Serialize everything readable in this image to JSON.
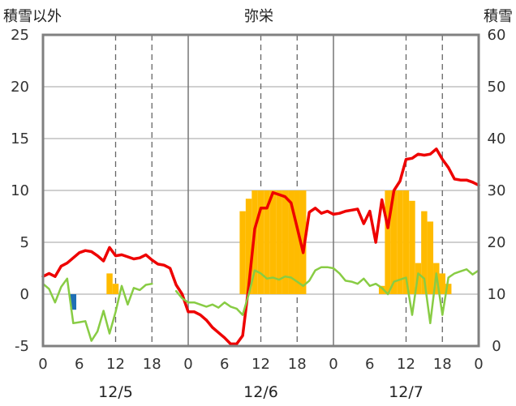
{
  "chart_data": {
    "type": "bar+line",
    "title": "弥栄",
    "left_axis_label": "積雪以外",
    "right_axis_label": "積雪",
    "left_axis": {
      "min": -5,
      "max": 25,
      "ticks": [
        -5,
        0,
        5,
        10,
        15,
        20,
        25
      ]
    },
    "right_axis": {
      "min": 0,
      "max": 60,
      "ticks": [
        0,
        10,
        20,
        30,
        40,
        50,
        60
      ]
    },
    "x_axis": {
      "min": 0,
      "max": 72,
      "tick_hours": [
        0,
        6,
        12,
        18,
        24,
        30,
        36,
        42,
        48,
        54,
        60,
        66,
        72
      ],
      "tick_labels": [
        "0",
        "6",
        "12",
        "18",
        "0",
        "6",
        "12",
        "18",
        "0",
        "6",
        "12",
        "18",
        "0"
      ],
      "date_labels": [
        {
          "hour": 12,
          "label": "12/5"
        },
        {
          "hour": 36,
          "label": "12/6"
        },
        {
          "hour": 60,
          "label": "12/7"
        }
      ],
      "day_separators": [
        24,
        48
      ],
      "noon_lines": [
        12,
        36,
        60
      ]
    },
    "colors": {
      "temperature": "#ee0000",
      "dewpoint": "#88cc44",
      "snowfall": "#ffbb00",
      "precipitation": "#1f6fb5",
      "snow_depth": "#7030a0"
    },
    "series": [
      {
        "key": "temperature",
        "axis": "left",
        "x": [
          0,
          1,
          2,
          3,
          4,
          5,
          6,
          7,
          8,
          9,
          10,
          11,
          12,
          13,
          14,
          15,
          16,
          17,
          18,
          19,
          20,
          21,
          22,
          23,
          24,
          25,
          26,
          27,
          28,
          29,
          30,
          31,
          32,
          33,
          34,
          35,
          36,
          37,
          38,
          39,
          40,
          41,
          42,
          43,
          44,
          45,
          46,
          47,
          48,
          49,
          50,
          51,
          52,
          53,
          54,
          55,
          56,
          57,
          58,
          59,
          60,
          61,
          62,
          63,
          64,
          65,
          66,
          67,
          68,
          69,
          70,
          71
        ],
        "values": [
          1.7,
          2.0,
          1.7,
          2.7,
          3.0,
          3.5,
          4.0,
          4.2,
          4.1,
          3.7,
          3.2,
          4.5,
          3.7,
          3.8,
          3.6,
          3.4,
          3.5,
          3.8,
          3.3,
          2.9,
          2.8,
          2.5,
          0.9,
          0.0,
          -1.7,
          -1.7,
          -2.0,
          -2.5,
          -3.2,
          -3.7,
          -4.2,
          -4.8,
          -4.8,
          -4.0,
          0.8,
          6.3,
          8.3,
          8.3,
          9.8,
          9.6,
          9.4,
          8.8,
          6.4,
          4.0,
          7.9,
          8.3,
          7.8,
          8.0,
          7.7,
          7.8,
          8.0,
          8.1,
          8.2,
          6.8,
          8.0,
          5.0,
          9.1,
          6.4,
          10.0,
          10.9,
          13.0,
          13.1,
          13.5,
          13.4,
          13.5,
          14.0,
          13.0,
          12.2,
          11.1,
          11.0,
          11.0,
          10.8
        ]
      },
      {
        "key": "temperature_tail",
        "axis": "left",
        "x": [
          71,
          72
        ],
        "values": [
          10.8,
          10.5
        ]
      },
      {
        "key": "dewpoint",
        "axis": "left",
        "x": [
          0,
          1,
          2,
          3,
          4,
          5,
          6,
          7,
          8,
          9,
          10,
          11,
          12,
          13,
          14,
          15,
          16,
          17,
          18
        ],
        "values": [
          1.0,
          0.5,
          -0.8,
          0.7,
          1.5,
          -2.8,
          -2.7,
          -2.6,
          -4.5,
          -3.6,
          -1.6,
          -3.8,
          -1.7,
          0.8,
          -1.0,
          0.6,
          0.4,
          0.9,
          1.0
        ]
      },
      {
        "key": "dewpoint_2",
        "axis": "left",
        "x": [
          22,
          23,
          24,
          25,
          26,
          27,
          28,
          29,
          30,
          31,
          32,
          33,
          34,
          35,
          36,
          37,
          38,
          39,
          40,
          41,
          42,
          43,
          44,
          45,
          46,
          47,
          48,
          49,
          50,
          51,
          52,
          53,
          54,
          55,
          56,
          57,
          58,
          59,
          60,
          61,
          62,
          63,
          64,
          65,
          66,
          67,
          68,
          69,
          70,
          71,
          72
        ],
        "values": [
          0.3,
          -0.4,
          -0.8,
          -0.8,
          -1.0,
          -1.2,
          -1.0,
          -1.3,
          -0.8,
          -1.2,
          -1.4,
          -2.0,
          0.0,
          2.3,
          2.0,
          1.5,
          1.6,
          1.4,
          1.7,
          1.6,
          1.2,
          0.8,
          1.3,
          2.3,
          2.6,
          2.6,
          2.5,
          2.0,
          1.3,
          1.2,
          1.0,
          1.5,
          0.8,
          1.0,
          0.6,
          0.0,
          1.2,
          1.4,
          1.6,
          -2.0,
          2.0,
          1.5,
          -2.8,
          2.0,
          -2.0,
          1.6,
          2.0,
          2.2,
          2.4,
          1.9,
          2.3
        ]
      },
      {
        "key": "snowfall",
        "axis": "left",
        "x": [
          11,
          12,
          33,
          34,
          35,
          36,
          37,
          38,
          39,
          40,
          41,
          42,
          43,
          56,
          57,
          58,
          59,
          60,
          61,
          62,
          63,
          64,
          65,
          66,
          67
        ],
        "values": [
          2.0,
          1.0,
          8.0,
          9.2,
          10.0,
          10.0,
          10.0,
          10.0,
          10.0,
          10.0,
          10.0,
          10.0,
          10.0,
          0.8,
          10.0,
          10.0,
          10.0,
          10.0,
          9.0,
          3.0,
          8.0,
          7.0,
          3.0,
          2.0,
          1.0
        ]
      },
      {
        "key": "precipitation",
        "axis": "left",
        "x": [
          5
        ],
        "values": [
          -1.5
        ]
      },
      {
        "key": "snow_depth",
        "axis": "right",
        "x": [
          0,
          72
        ],
        "values": [
          0,
          0
        ]
      }
    ]
  }
}
